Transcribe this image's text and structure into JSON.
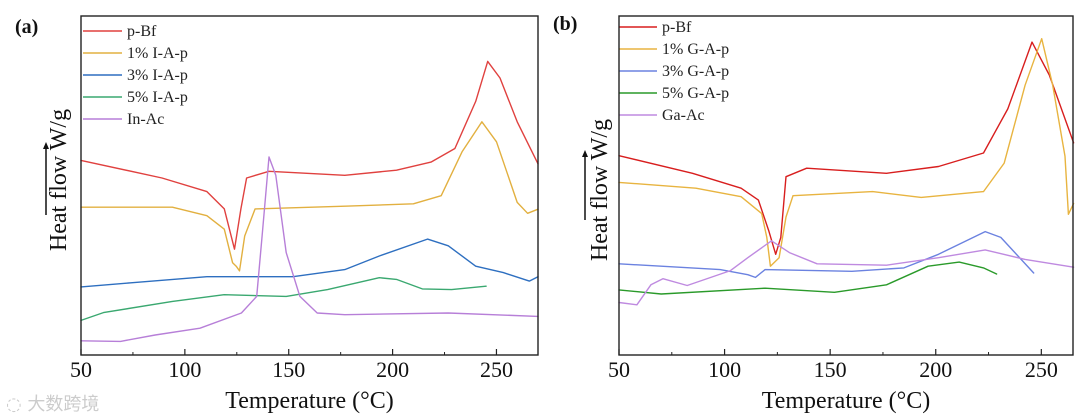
{
  "watermark": "大数跨境",
  "chart_data": [
    {
      "type": "line",
      "panel_label": "(a)",
      "xlabel": "Temperature (°C)",
      "ylabel": "Heat flow W/g",
      "xlim": [
        50,
        270
      ],
      "ylim": [
        0,
        100
      ],
      "y_units": "arbitrary (stacked curves, up = exo)",
      "xticks": [
        50,
        100,
        150,
        200,
        250
      ],
      "xtick_labels": [
        "50",
        "100",
        "150",
        "200",
        "250"
      ],
      "minor_xticks": [
        75,
        125,
        175,
        225
      ],
      "legend_position": "top-left",
      "series": [
        {
          "name": "p-Bf",
          "color": "#e0413f",
          "points": [
            [
              50,
              57.4
            ],
            [
              89,
              52.2
            ],
            [
              110.6,
              48.2
            ],
            [
              119,
              43.1
            ],
            [
              123.9,
              31.2
            ],
            [
              127,
              43.1
            ],
            [
              129.7,
              52.2
            ],
            [
              140.5,
              54.2
            ],
            [
              177,
              53
            ],
            [
              201.9,
              54.5
            ],
            [
              218.5,
              56.9
            ],
            [
              230,
              60.9
            ],
            [
              240,
              74.8
            ],
            [
              245.8,
              86.6
            ],
            [
              251.7,
              81.7
            ],
            [
              260,
              68.8
            ],
            [
              270,
              56.4
            ]
          ]
        },
        {
          "name": "1% I-A-p",
          "color": "#e2b040",
          "points": [
            [
              50,
              43.6
            ],
            [
              94,
              43.6
            ],
            [
              110.6,
              41.1
            ],
            [
              119,
              37.1
            ],
            [
              123,
              27.2
            ],
            [
              124.7,
              26.2
            ],
            [
              126.3,
              24.8
            ],
            [
              128.8,
              35.1
            ],
            [
              133.8,
              43.1
            ],
            [
              177,
              43.9
            ],
            [
              210,
              44.6
            ],
            [
              223.4,
              47
            ],
            [
              233.4,
              59.9
            ],
            [
              243,
              68.8
            ],
            [
              250,
              62.9
            ],
            [
              260,
              45
            ],
            [
              265,
              41.8
            ],
            [
              270,
              43
            ]
          ]
        },
        {
          "name": "3% I-A-p",
          "color": "#2e6fc0",
          "points": [
            [
              50,
              20.1
            ],
            [
              74,
              21.3
            ],
            [
              110.6,
              23.1
            ],
            [
              152,
              23.1
            ],
            [
              177,
              25.2
            ],
            [
              193.6,
              29.2
            ],
            [
              216.8,
              34.2
            ],
            [
              226.8,
              32.2
            ],
            [
              240,
              26.2
            ],
            [
              253.3,
              24.3
            ],
            [
              265.8,
              21.8
            ],
            [
              270,
              23.1
            ]
          ]
        },
        {
          "name": "5% I-A-p",
          "color": "#3aa870",
          "points": [
            [
              50,
              10.2
            ],
            [
              60.8,
              12.5
            ],
            [
              94,
              15.8
            ],
            [
              118.9,
              17.8
            ],
            [
              148.8,
              17.3
            ],
            [
              168.7,
              19.3
            ],
            [
              193.6,
              22.8
            ],
            [
              201.9,
              22.3
            ],
            [
              214.3,
              19.5
            ],
            [
              228.4,
              19.3
            ],
            [
              245,
              20.3
            ]
          ]
        },
        {
          "name": "In-Ac",
          "color": "#b77fd8",
          "points": [
            [
              50,
              4.2
            ],
            [
              69,
              4
            ],
            [
              85.7,
              5.9
            ],
            [
              107.3,
              7.9
            ],
            [
              127.2,
              12.4
            ],
            [
              134.6,
              17.3
            ],
            [
              137.2,
              35.1
            ],
            [
              140.5,
              58.4
            ],
            [
              143.8,
              53
            ],
            [
              148.8,
              30.2
            ],
            [
              155.4,
              17.3
            ],
            [
              163.7,
              12.4
            ],
            [
              177,
              11.9
            ],
            [
              226.8,
              12.4
            ],
            [
              270,
              11.4
            ]
          ]
        }
      ]
    },
    {
      "type": "line",
      "panel_label": "(b)",
      "xlabel": "Temperature (°C)",
      "ylabel": "Heat flow W/g",
      "xlim": [
        50,
        265
      ],
      "ylim": [
        0,
        100
      ],
      "y_units": "arbitrary (stacked curves, up = exo)",
      "xticks": [
        50,
        100,
        150,
        200,
        250
      ],
      "xtick_labels": [
        "50",
        "100",
        "150",
        "200",
        "250"
      ],
      "minor_xticks": [
        75,
        125,
        175,
        225
      ],
      "legend_position": "top-left",
      "series": [
        {
          "name": "p-Bf",
          "color": "#d81e1e",
          "points": [
            [
              50,
              58.8
            ],
            [
              84.8,
              53.6
            ],
            [
              107.8,
              49.2
            ],
            [
              116,
              45.7
            ],
            [
              120.9,
              36.7
            ],
            [
              124.2,
              29.7
            ],
            [
              126.6,
              34.7
            ],
            [
              129.1,
              52.6
            ],
            [
              138.9,
              55.1
            ],
            [
              176.7,
              53.6
            ],
            [
              201.3,
              55.6
            ],
            [
              222.6,
              59.6
            ],
            [
              234.1,
              72.6
            ],
            [
              245.6,
              92.3
            ],
            [
              253.8,
              82.6
            ],
            [
              265.3,
              62.6
            ]
          ]
        },
        {
          "name": "1% G-A-p",
          "color": "#e8b440",
          "points": [
            [
              50,
              50.9
            ],
            [
              86.4,
              49.2
            ],
            [
              107.8,
              46.7
            ],
            [
              117.6,
              41.7
            ],
            [
              120,
              34.7
            ],
            [
              121.7,
              26.2
            ],
            [
              125.8,
              28.7
            ],
            [
              129.1,
              40.7
            ],
            [
              132.4,
              47
            ],
            [
              170.1,
              48.2
            ],
            [
              193.1,
              46.5
            ],
            [
              222.6,
              48.2
            ],
            [
              232.4,
              56.6
            ],
            [
              242.3,
              79.6
            ],
            [
              250.2,
              93.3
            ],
            [
              255.4,
              79.6
            ],
            [
              261.2,
              58.6
            ],
            [
              262.8,
              41.5
            ],
            [
              265.3,
              44.7
            ]
          ]
        },
        {
          "name": "3% G-A-p",
          "color": "#6b82e0",
          "points": [
            [
              50,
              26.9
            ],
            [
              97.9,
              25.2
            ],
            [
              111,
              23.7
            ],
            [
              114.6,
              22.9
            ],
            [
              119.2,
              25.2
            ],
            [
              160.3,
              24.7
            ],
            [
              184.9,
              25.7
            ],
            [
              201.3,
              29.7
            ],
            [
              223.4,
              36.4
            ],
            [
              230.8,
              34.7
            ],
            [
              246.4,
              24.2
            ]
          ]
        },
        {
          "name": "5% G-A-p",
          "color": "#2a9a2a",
          "points": [
            [
              50,
              19.2
            ],
            [
              70,
              18
            ],
            [
              119.2,
              19.7
            ],
            [
              152,
              18.5
            ],
            [
              176.7,
              20.7
            ],
            [
              196.4,
              26.2
            ],
            [
              211.1,
              27.4
            ],
            [
              222.6,
              25.7
            ],
            [
              228.8,
              23.9
            ]
          ]
        },
        {
          "name": "Ga-Ac",
          "color": "#bf8ae0",
          "points": [
            [
              50,
              15.5
            ],
            [
              58.5,
              14.8
            ],
            [
              65.1,
              20.7
            ],
            [
              70.8,
              22.5
            ],
            [
              82.3,
              20.5
            ],
            [
              102.8,
              24.9
            ],
            [
              111,
              28.7
            ],
            [
              122.2,
              33.7
            ],
            [
              130.7,
              30.2
            ],
            [
              143.8,
              26.9
            ],
            [
              176.7,
              26.5
            ],
            [
              201.3,
              28.7
            ],
            [
              223.4,
              31
            ],
            [
              242.3,
              28.2
            ],
            [
              265.3,
              25.9
            ]
          ]
        }
      ]
    }
  ]
}
